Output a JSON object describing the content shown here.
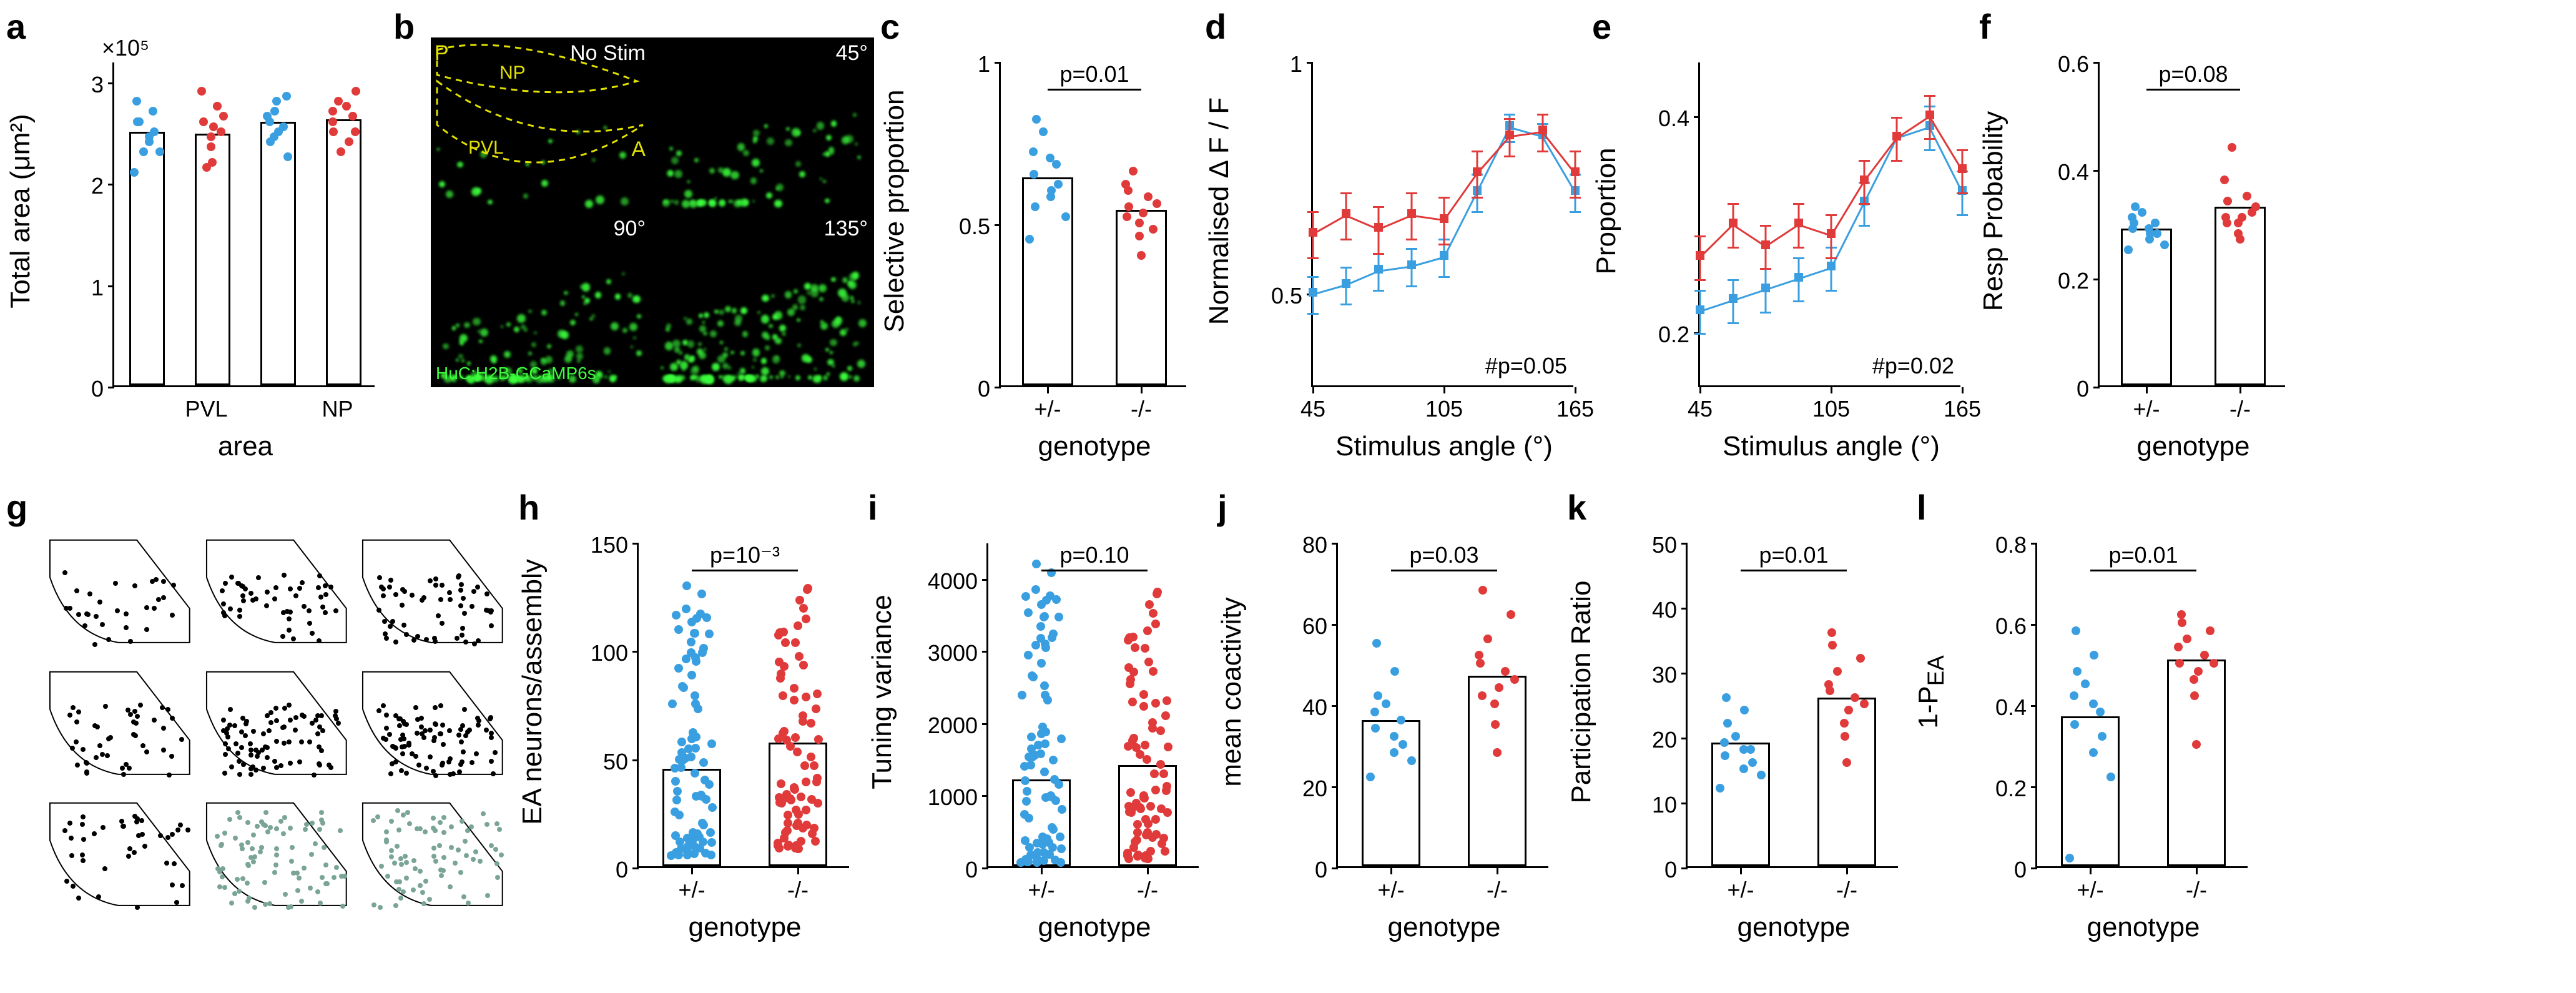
{
  "colors": {
    "het": "#3a9fe0",
    "hom": "#e03a3a",
    "axis": "#000000",
    "micro_green": "#3cff3c",
    "micro_bg": "#000000",
    "dashed": "#e0e000",
    "assembly_gray": "#7aa496"
  },
  "panel_labels": {
    "a": "a",
    "b": "b",
    "c": "c",
    "d": "d",
    "e": "e",
    "f": "f",
    "g": "g",
    "h": "h",
    "i": "i",
    "j": "j",
    "k": "k",
    "l": "l"
  },
  "a": {
    "type": "bar-scatter",
    "ylabel": "Total area (μm²)",
    "xlabel": "area",
    "y_exp_label": "×10⁵",
    "ylim": [
      0,
      3.2
    ],
    "yticks": [
      0,
      1,
      2,
      3
    ],
    "groups": [
      "PVL",
      "NP"
    ],
    "bars": [
      {
        "group": "PVL",
        "geno": "het",
        "value": 2.5,
        "points": [
          2.1,
          2.3,
          2.4,
          2.5,
          2.6,
          2.7,
          2.8,
          2.3,
          2.6,
          2.45
        ]
      },
      {
        "group": "PVL",
        "geno": "hom",
        "value": 2.48,
        "points": [
          2.2,
          2.35,
          2.45,
          2.55,
          2.65,
          2.75,
          2.9,
          2.15,
          2.5,
          2.6
        ]
      },
      {
        "group": "NP",
        "geno": "het",
        "value": 2.6,
        "points": [
          2.25,
          2.4,
          2.5,
          2.6,
          2.7,
          2.8,
          2.85,
          2.45,
          2.55,
          2.65
        ]
      },
      {
        "group": "NP",
        "geno": "hom",
        "value": 2.62,
        "points": [
          2.3,
          2.4,
          2.5,
          2.6,
          2.7,
          2.8,
          2.9,
          2.5,
          2.65,
          2.75
        ]
      }
    ]
  },
  "b": {
    "type": "micrograph",
    "label_pos": [
      "P",
      "NP",
      "PVL",
      "A"
    ],
    "corner_labels": [
      "No Stim",
      "45°",
      "90°",
      "135°"
    ],
    "reporter": "HuC:H2B-GCaMP6s"
  },
  "c": {
    "type": "bar-scatter",
    "ylabel": "Selective proportion",
    "xlabel": "genotype",
    "ylim": [
      0,
      1.0
    ],
    "yticks": [
      0,
      0.5,
      1.0
    ],
    "pval": "p=0.01",
    "bars": [
      {
        "geno": "+/-",
        "color": "het",
        "value": 0.64,
        "points": [
          0.45,
          0.52,
          0.58,
          0.62,
          0.65,
          0.68,
          0.72,
          0.78,
          0.82,
          0.6,
          0.55,
          0.7
        ]
      },
      {
        "geno": "-/-",
        "color": "hom",
        "value": 0.54,
        "points": [
          0.4,
          0.46,
          0.5,
          0.53,
          0.56,
          0.58,
          0.62,
          0.66,
          0.48,
          0.55,
          0.6,
          0.52
        ]
      }
    ]
  },
  "d": {
    "type": "line",
    "ylabel": "Normalised Δ F / F",
    "xlabel": "Stimulus angle (°)",
    "ylim": [
      0.3,
      1.0
    ],
    "yticks": [
      0.5,
      1.0
    ],
    "xlim": [
      45,
      165
    ],
    "xticks": [
      45,
      105,
      165
    ],
    "hash_p": "#p=0.05",
    "series": [
      {
        "color": "het",
        "x": [
          45,
          60,
          75,
          90,
          105,
          120,
          135,
          150,
          165
        ],
        "y": [
          0.5,
          0.52,
          0.55,
          0.56,
          0.58,
          0.72,
          0.86,
          0.84,
          0.72
        ],
        "err": [
          0.04,
          0.04,
          0.04,
          0.04,
          0.04,
          0.04,
          0.03,
          0.03,
          0.04
        ]
      },
      {
        "color": "hom",
        "x": [
          45,
          60,
          75,
          90,
          105,
          120,
          135,
          150,
          165
        ],
        "y": [
          0.63,
          0.67,
          0.64,
          0.67,
          0.66,
          0.76,
          0.84,
          0.85,
          0.76
        ],
        "err": [
          0.05,
          0.05,
          0.05,
          0.05,
          0.05,
          0.05,
          0.04,
          0.04,
          0.05
        ]
      }
    ]
  },
  "e": {
    "type": "line",
    "ylabel": "Proportion",
    "xlabel": "Stimulus angle (°)",
    "ylim": [
      0.15,
      0.45
    ],
    "yticks": [
      0.2,
      0.4
    ],
    "xlim": [
      45,
      165
    ],
    "xticks": [
      45,
      105,
      165
    ],
    "hash_p": "#p=0.02",
    "series": [
      {
        "color": "het",
        "x": [
          45,
          60,
          75,
          90,
          105,
          120,
          135,
          150,
          165
        ],
        "y": [
          0.22,
          0.23,
          0.24,
          0.25,
          0.26,
          0.32,
          0.38,
          0.39,
          0.33
        ],
        "err": [
          0.02,
          0.02,
          0.02,
          0.02,
          0.02,
          0.02,
          0.02,
          0.02,
          0.02
        ]
      },
      {
        "color": "hom",
        "x": [
          45,
          60,
          75,
          90,
          105,
          120,
          135,
          150,
          165
        ],
        "y": [
          0.27,
          0.3,
          0.28,
          0.3,
          0.29,
          0.34,
          0.38,
          0.4,
          0.35
        ],
        "err": [
          0.02,
          0.02,
          0.02,
          0.02,
          0.02,
          0.02,
          0.02,
          0.02,
          0.02
        ]
      }
    ]
  },
  "f": {
    "type": "bar-scatter",
    "ylabel": "Resp Probability",
    "xlabel": "genotype",
    "ylim": [
      0,
      0.6
    ],
    "yticks": [
      0,
      0.2,
      0.4,
      0.6
    ],
    "pval": "p=0.08",
    "bars": [
      {
        "geno": "+/-",
        "color": "het",
        "value": 0.29,
        "points": [
          0.25,
          0.26,
          0.27,
          0.28,
          0.29,
          0.3,
          0.31,
          0.32,
          0.33,
          0.28,
          0.3,
          0.29
        ]
      },
      {
        "geno": "-/-",
        "color": "hom",
        "value": 0.33,
        "points": [
          0.27,
          0.28,
          0.3,
          0.31,
          0.33,
          0.35,
          0.38,
          0.44,
          0.32,
          0.34,
          0.3,
          0.31
        ]
      }
    ]
  },
  "g": {
    "type": "assembly-maps",
    "n_assemblies": 9,
    "gray_indices": [
      7,
      8
    ]
  },
  "h": {
    "type": "bar-scatter",
    "ylabel": "EA neurons/assembly",
    "xlabel": "genotype",
    "ylim": [
      0,
      150
    ],
    "yticks": [
      0,
      50,
      100,
      150
    ],
    "pval": "p=10⁻³",
    "bars": [
      {
        "geno": "+/-",
        "color": "het",
        "value": 45,
        "npoints": 80,
        "range": [
          5,
          130
        ]
      },
      {
        "geno": "-/-",
        "color": "hom",
        "value": 57,
        "npoints": 80,
        "range": [
          8,
          135
        ]
      }
    ]
  },
  "i": {
    "type": "bar-scatter",
    "ylabel": "Tuning variance",
    "xlabel": "genotype",
    "ylim": [
      0,
      4500
    ],
    "yticks": [
      0,
      1000,
      2000,
      3000,
      4000
    ],
    "pval": "p=0.10",
    "bars": [
      {
        "geno": "+/-",
        "color": "het",
        "value": 1200,
        "npoints": 80,
        "range": [
          50,
          4200
        ]
      },
      {
        "geno": "-/-",
        "color": "hom",
        "value": 1400,
        "npoints": 80,
        "range": [
          100,
          4000
        ]
      }
    ]
  },
  "j": {
    "type": "bar-scatter",
    "ylabel": "mean coactivity",
    "xlabel": "genotype",
    "ylim": [
      0,
      80
    ],
    "yticks": [
      0,
      20,
      40,
      60,
      80
    ],
    "pval": "p=0.03",
    "bars": [
      {
        "geno": "+/-",
        "color": "het",
        "value": 36,
        "points": [
          22,
          26,
          28,
          30,
          34,
          36,
          38,
          40,
          42,
          48,
          55,
          32
        ]
      },
      {
        "geno": "-/-",
        "color": "hom",
        "value": 47,
        "points": [
          28,
          35,
          40,
          44,
          46,
          48,
          52,
          56,
          62,
          68,
          42,
          50
        ]
      }
    ]
  },
  "k": {
    "type": "bar-scatter",
    "ylabel": "Participation Ratio",
    "xlabel": "genotype",
    "ylim": [
      0,
      50
    ],
    "yticks": [
      0,
      10,
      20,
      30,
      40,
      50
    ],
    "pval": "p=0.01",
    "bars": [
      {
        "geno": "+/-",
        "color": "het",
        "value": 19,
        "points": [
          12,
          14,
          15,
          16,
          17,
          18,
          19,
          20,
          22,
          24,
          26,
          18
        ]
      },
      {
        "geno": "-/-",
        "color": "hom",
        "value": 26,
        "points": [
          16,
          20,
          22,
          24,
          25,
          26,
          28,
          30,
          32,
          34,
          36,
          27
        ]
      }
    ]
  },
  "l": {
    "type": "bar-scatter",
    "ylabel": "1-P<sub>EA</sub>",
    "xlabel": "genotype",
    "yl_html": true,
    "ylim": [
      0,
      0.8
    ],
    "yticks": [
      0,
      0.2,
      0.4,
      0.6,
      0.8
    ],
    "pval": "p=0.01",
    "bars": [
      {
        "geno": "+/-",
        "color": "het",
        "value": 0.37,
        "points": [
          0.02,
          0.22,
          0.28,
          0.32,
          0.35,
          0.38,
          0.42,
          0.45,
          0.48,
          0.52,
          0.58,
          0.4
        ]
      },
      {
        "geno": "-/-",
        "color": "hom",
        "value": 0.51,
        "points": [
          0.3,
          0.42,
          0.46,
          0.48,
          0.5,
          0.52,
          0.54,
          0.56,
          0.58,
          0.6,
          0.62,
          0.5
        ]
      }
    ]
  },
  "line_chart_style": {
    "line_width": 3,
    "marker_size": 14,
    "cap_width": 18
  },
  "point_size": 14,
  "font": {
    "panel_label_size": 56,
    "tick": 36,
    "axis": 44,
    "annot": 36
  }
}
